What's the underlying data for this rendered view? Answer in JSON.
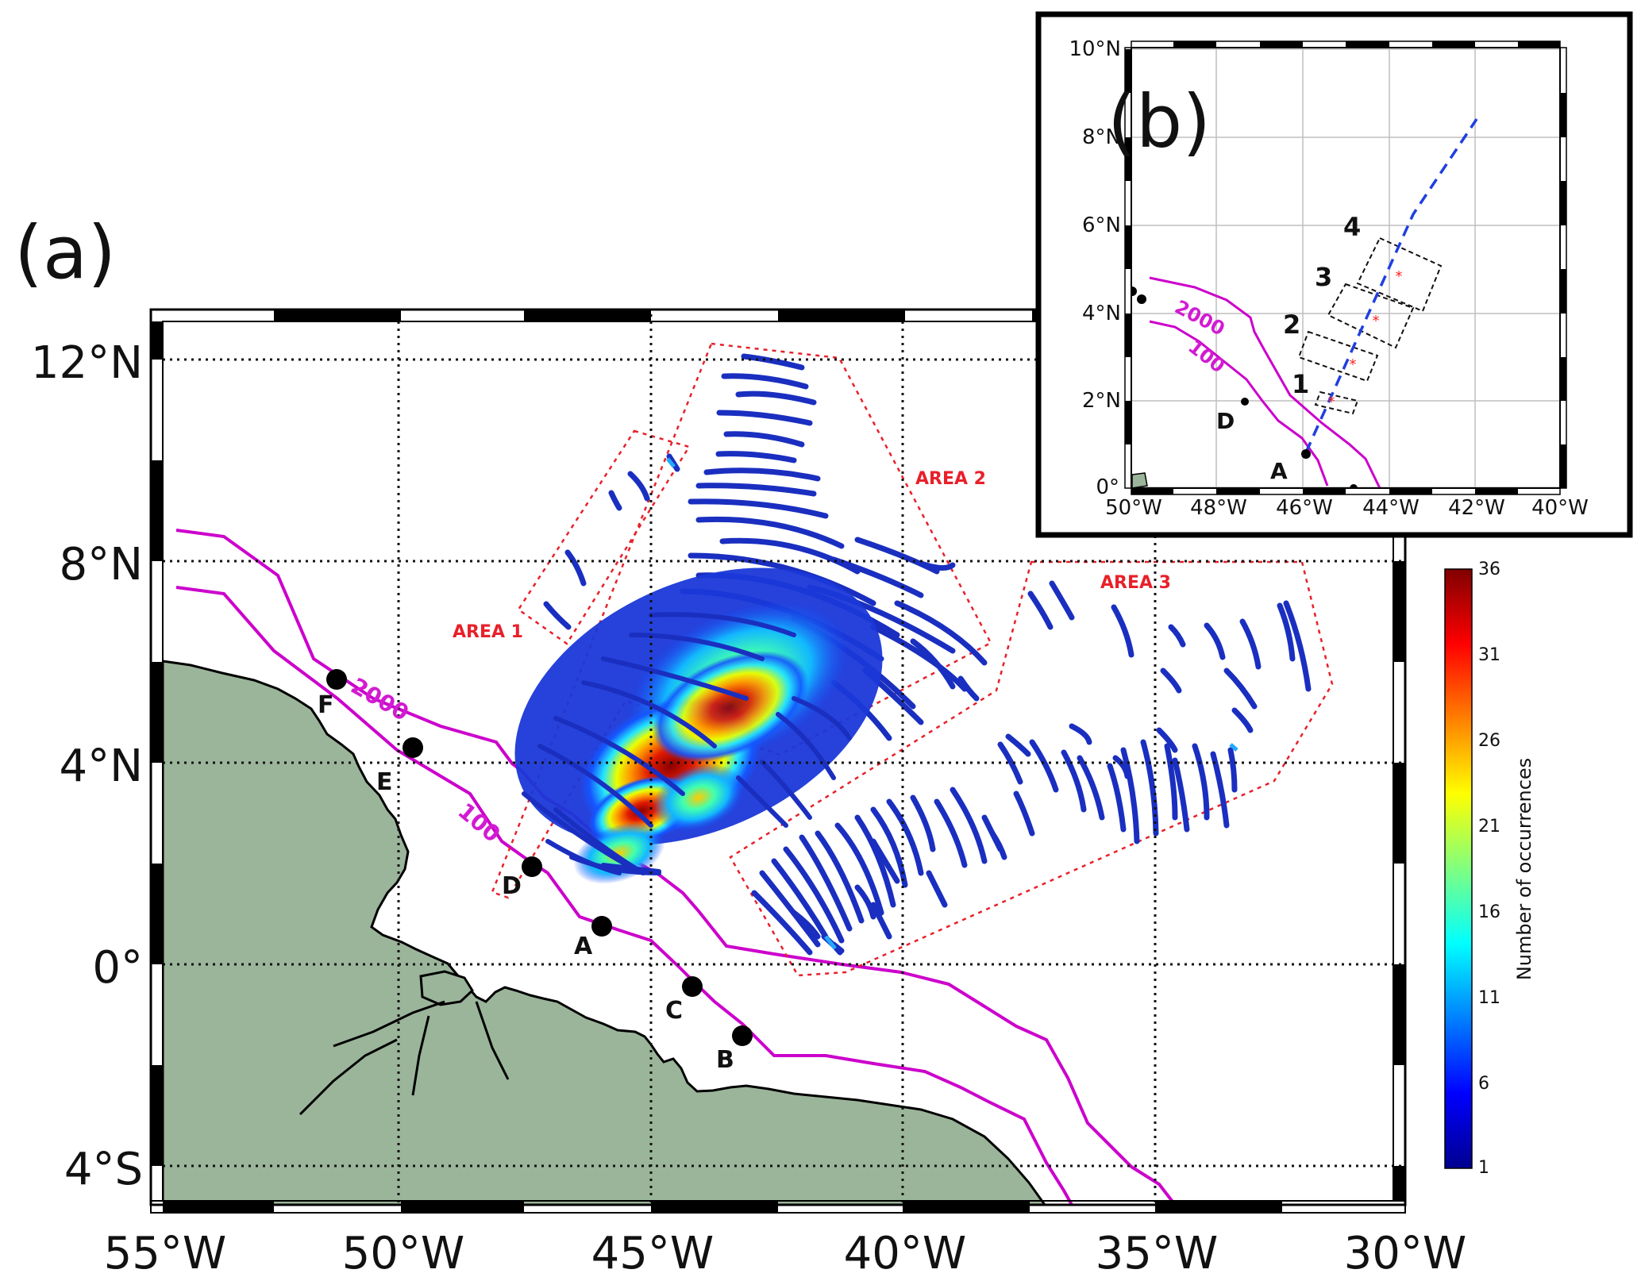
{
  "panel_a": {
    "label": "(a)",
    "lon_ticks": [
      "55°W",
      "50°W",
      "45°W",
      "40°W",
      "35°W",
      "30°W"
    ],
    "lat_ticks": [
      "12°N",
      "8°N",
      "4°N",
      "0°",
      "4°S"
    ],
    "areas": [
      "AREA 1",
      "AREA 2",
      "AREA 3"
    ],
    "isobaths": [
      "2000",
      "100"
    ],
    "stations": [
      "F",
      "E",
      "D",
      "A",
      "C",
      "B"
    ]
  },
  "panel_b": {
    "label": "(b)",
    "lon_ticks": [
      "50°W",
      "48°W",
      "46°W",
      "44°W",
      "42°W",
      "40°W"
    ],
    "lat_ticks": [
      "10°N",
      "8°N",
      "6°N",
      "4°N",
      "2°N",
      "0°"
    ],
    "boxes": [
      "1",
      "2",
      "3",
      "4"
    ],
    "isobaths": [
      "2000",
      "100"
    ],
    "stations": [
      "D",
      "A"
    ]
  },
  "colorbar": {
    "title": "Number of occurrences",
    "ticks": [
      "36",
      "31",
      "26",
      "21",
      "16",
      "11",
      "6",
      "1"
    ]
  },
  "colors": {
    "land": "#9bb59a",
    "isobath": "#cc00cc",
    "area_box": "#e8202a",
    "track_low": "#1a2fb5",
    "transect": "#1f3fe0"
  }
}
